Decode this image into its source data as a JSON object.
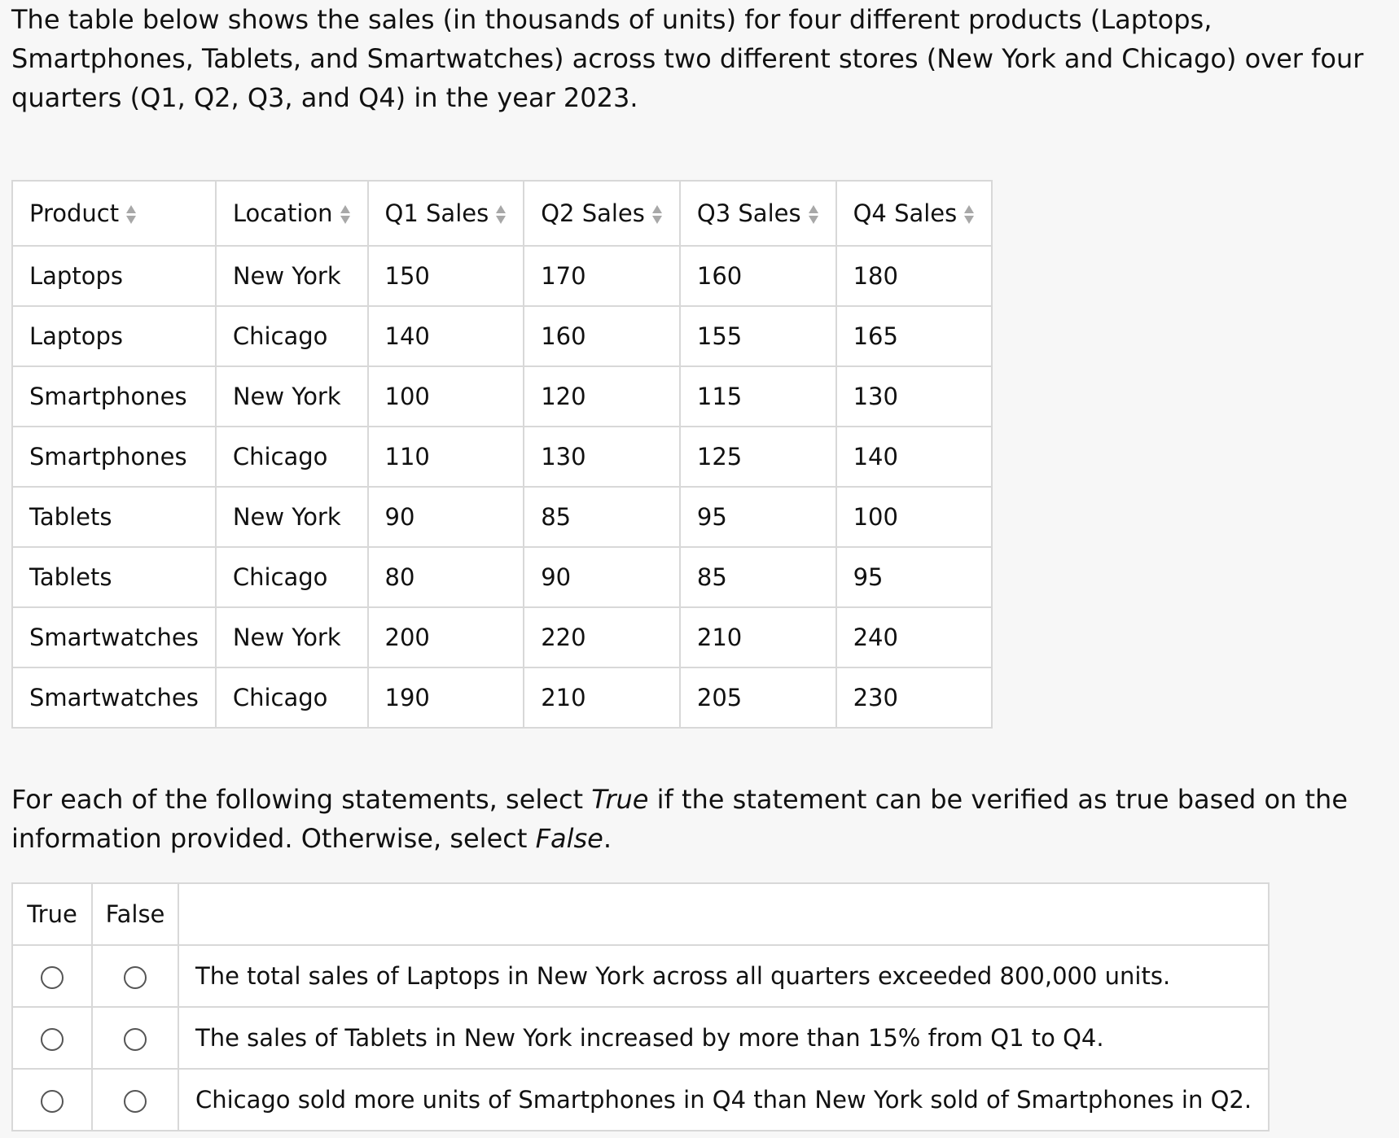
{
  "intro": "The table below shows the sales (in thousands of units) for four different products (Laptops, Smartphones, Tablets, and Smartwatches) across two different stores (New York and Chicago) over four quarters (Q1, Q2, Q3, and Q4) in the year 2023.",
  "table": {
    "headers": [
      "Product",
      "Location",
      "Q1 Sales",
      "Q2 Sales",
      "Q3 Sales",
      "Q4 Sales"
    ],
    "rows": [
      [
        "Laptops",
        "New York",
        "150",
        "170",
        "160",
        "180"
      ],
      [
        "Laptops",
        "Chicago",
        "140",
        "160",
        "155",
        "165"
      ],
      [
        "Smartphones",
        "New York",
        "100",
        "120",
        "115",
        "130"
      ],
      [
        "Smartphones",
        "Chicago",
        "110",
        "130",
        "125",
        "140"
      ],
      [
        "Tablets",
        "New York",
        "90",
        "85",
        "95",
        "100"
      ],
      [
        "Tablets",
        "Chicago",
        "80",
        "90",
        "85",
        "95"
      ],
      [
        "Smartwatches",
        "New York",
        "200",
        "220",
        "210",
        "240"
      ],
      [
        "Smartwatches",
        "Chicago",
        "190",
        "210",
        "205",
        "230"
      ]
    ]
  },
  "instructions": {
    "prefix": "For each of the following statements, select ",
    "true_word": "True",
    "middle": " if the statement can be verified as true based on the information provided. Otherwise, select ",
    "false_word": "False",
    "suffix": "."
  },
  "tf": {
    "true_label": "True",
    "false_label": "False",
    "statements": [
      "The total sales of Laptops in New York across all quarters exceeded 800,000 units.",
      "The sales of Tablets in New York increased by more than 15% from Q1 to Q4.",
      "Chicago sold more units of Smartphones in Q4 than New York sold of Smartphones in Q2."
    ]
  }
}
